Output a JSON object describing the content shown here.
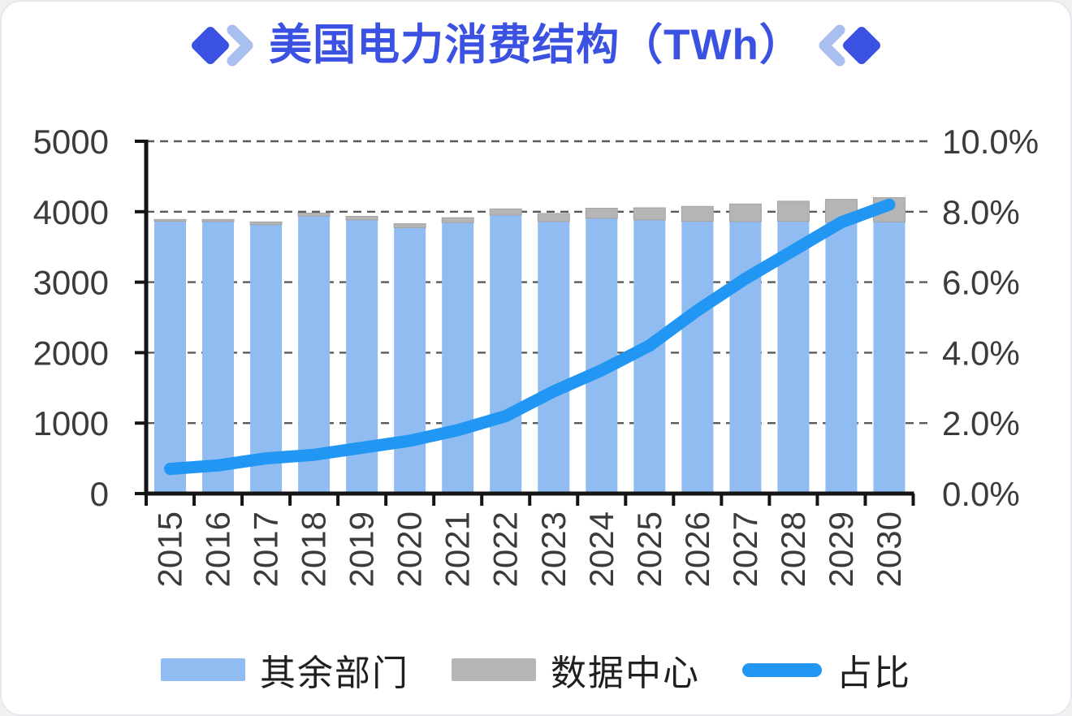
{
  "title": {
    "text": "美国电力消费结构（TWh）"
  },
  "colors": {
    "bar_other": "#90BCF2",
    "bar_datacenter": "#B5B5B5",
    "bar_datacenter_edge": "#a3a3a3",
    "line_share": "#2196F3",
    "title_blue": "#3B51E2",
    "deco_light_blue": "#A9BFF0",
    "axis_text": "#3b3b3b",
    "axis_line": "#141414",
    "gridline": "#5a5a5a"
  },
  "chart_data": {
    "type": "combo: stacked-bar + line",
    "title": "美国电力消费结构（TWh）",
    "categories": [
      "2015",
      "2016",
      "2017",
      "2018",
      "2019",
      "2020",
      "2021",
      "2022",
      "2023",
      "2024",
      "2025",
      "2026",
      "2027",
      "2028",
      "2029",
      "2030"
    ],
    "bar_series": [
      {
        "name": "其余部门",
        "color": "#90BCF2",
        "values": [
          3863,
          3859,
          3816,
          3936,
          3884,
          3773,
          3845,
          3951,
          3860,
          3908,
          3885,
          3863,
          3859,
          3864,
          3854,
          3856
        ]
      },
      {
        "name": "数据中心",
        "color": "#B5B5B5",
        "values": [
          27,
          31,
          39,
          44,
          51,
          57,
          70,
          89,
          115,
          142,
          170,
          212,
          251,
          286,
          321,
          344
        ]
      }
    ],
    "bar_totals": [
      3890,
      3890,
      3855,
      3980,
      3935,
      3830,
      3915,
      4040,
      3975,
      4050,
      4055,
      4075,
      4110,
      4150,
      4175,
      4200
    ],
    "line_series": {
      "name": "占比",
      "color": "#2196F3",
      "axis": "right",
      "unit": "%",
      "values": [
        0.7,
        0.8,
        1.0,
        1.1,
        1.3,
        1.5,
        1.8,
        2.2,
        2.9,
        3.5,
        4.2,
        5.2,
        6.1,
        6.9,
        7.7,
        8.2
      ]
    },
    "left_axis": {
      "min": 0,
      "max": 5000,
      "ticks": [
        "0",
        "1000",
        "2000",
        "3000",
        "4000",
        "5000"
      ]
    },
    "right_axis": {
      "min": 0,
      "max": 10,
      "ticks": [
        "0.0%",
        "2.0%",
        "4.0%",
        "6.0%",
        "8.0%",
        "10.0%"
      ]
    },
    "grid": "horizontal dashed, on",
    "legend_position": "bottom",
    "x_tick_label_rotation": -90
  },
  "legend": {
    "items": [
      {
        "label": "其余部门",
        "type": "bar",
        "color": "#90BCF2"
      },
      {
        "label": "数据中心",
        "type": "bar",
        "color": "#B5B5B5"
      },
      {
        "label": "占比",
        "type": "line",
        "color": "#2196F3"
      }
    ]
  }
}
